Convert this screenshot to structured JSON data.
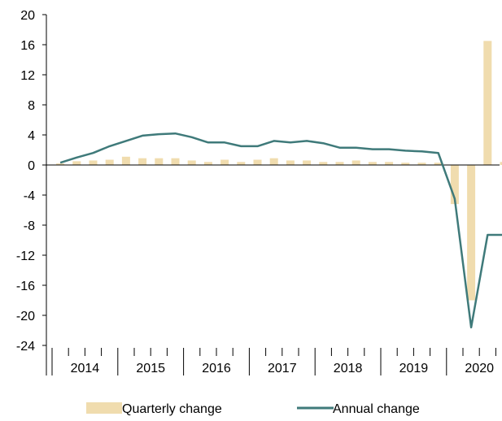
{
  "chart_data": {
    "type": "bar",
    "title": "",
    "xlabel": "",
    "ylabel": "",
    "ylim": [
      -24,
      20
    ],
    "yticks": [
      20,
      16,
      12,
      8,
      4,
      0,
      -4,
      -8,
      -12,
      -16,
      -20,
      -24
    ],
    "year_labels": [
      "2014",
      "2015",
      "2016",
      "2017",
      "2018",
      "2019",
      "2020"
    ],
    "quarters": [
      "2014 Q1",
      "2014 Q2",
      "2014 Q3",
      "2014 Q4",
      "2015 Q1",
      "2015 Q2",
      "2015 Q3",
      "2015 Q4",
      "2016 Q1",
      "2016 Q2",
      "2016 Q3",
      "2016 Q4",
      "2017 Q1",
      "2017 Q2",
      "2017 Q3",
      "2017 Q4",
      "2018 Q1",
      "2018 Q2",
      "2018 Q3",
      "2018 Q4",
      "2019 Q1",
      "2019 Q2",
      "2019 Q3",
      "2019 Q4",
      "2020 Q1",
      "2020 Q2",
      "2020 Q3",
      "2020 Q4"
    ],
    "series": [
      {
        "name": "Quarterly change",
        "type": "bar",
        "color": "#f0dcae",
        "values": [
          0.2,
          0.5,
          0.6,
          0.7,
          1.1,
          0.9,
          0.9,
          0.9,
          0.6,
          0.4,
          0.7,
          0.4,
          0.7,
          0.9,
          0.6,
          0.6,
          0.4,
          0.4,
          0.6,
          0.4,
          0.4,
          0.3,
          0.3,
          0.3,
          -5.2,
          -18.0,
          16.5,
          0.4
        ]
      },
      {
        "name": "Annual change",
        "type": "line",
        "color": "#3f7a7a",
        "values": [
          0.3,
          1.0,
          1.6,
          2.5,
          3.2,
          3.9,
          4.1,
          4.2,
          3.7,
          3.0,
          3.0,
          2.5,
          2.5,
          3.2,
          3.0,
          3.2,
          2.9,
          2.3,
          2.3,
          2.1,
          2.1,
          1.9,
          1.8,
          1.6,
          -4.5,
          -21.6,
          -9.3,
          -9.3
        ]
      }
    ],
    "legend_position": "bottom",
    "grid": false
  }
}
